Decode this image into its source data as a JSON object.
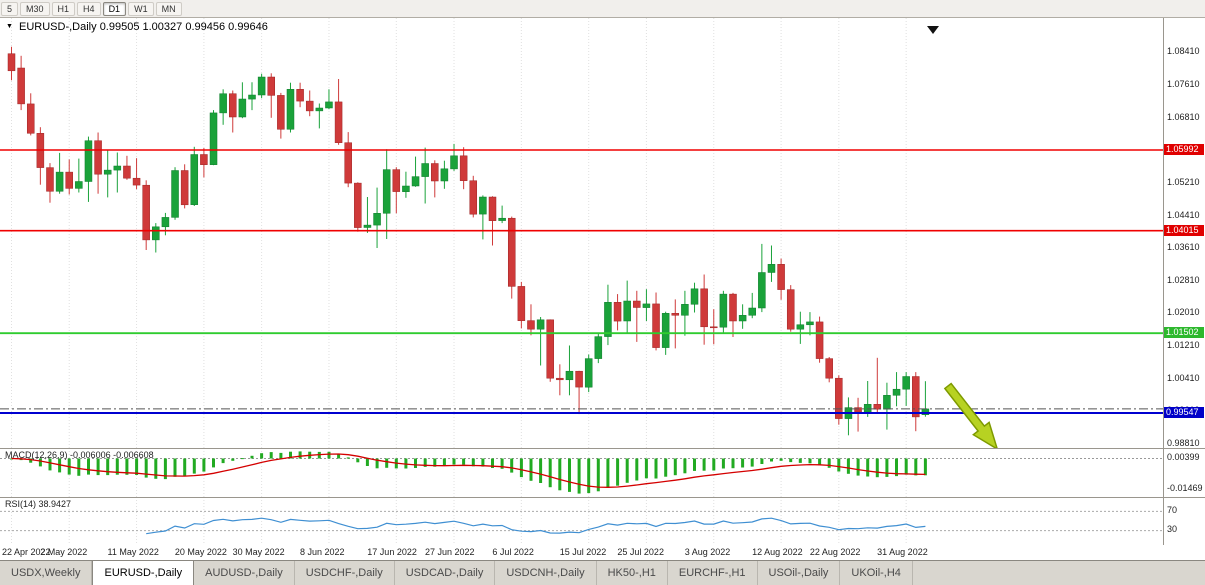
{
  "toolbar": {
    "buttons": [
      {
        "label": "5",
        "active": false
      },
      {
        "label": "M30",
        "active": false
      },
      {
        "label": "H1",
        "active": false
      },
      {
        "label": "H4",
        "active": false
      },
      {
        "label": "D1",
        "active": true
      },
      {
        "label": "W1",
        "active": false
      },
      {
        "label": "MN",
        "active": false
      }
    ]
  },
  "header": {
    "symbol_label": "EURUSD-,Daily",
    "ohlc_label": "0.99505 1.00327 0.99456 0.99646"
  },
  "indicators": {
    "macd": {
      "label": "MACD(12,26,9)",
      "values_label": "-0.006006 -0.006608",
      "axis_max_label": "0.00399",
      "axis_min_label": "-0.01469"
    },
    "rsi": {
      "label": "RSI(14)",
      "value_label": "38.9427",
      "levels": [
        70,
        30
      ],
      "level_labels": [
        "70",
        "30"
      ]
    }
  },
  "price_axis": {
    "labels": [
      {
        "text": "1.08410",
        "value": 1.0841
      },
      {
        "text": "1.07610",
        "value": 1.0761
      },
      {
        "text": "1.06810",
        "value": 1.0681
      },
      {
        "text": "1.06010",
        "value": 1.0601
      },
      {
        "text": "1.05210",
        "value": 1.0521
      },
      {
        "text": "1.04410",
        "value": 1.0441
      },
      {
        "text": "1.03610",
        "value": 1.0361
      },
      {
        "text": "1.02810",
        "value": 1.0281
      },
      {
        "text": "1.02010",
        "value": 1.0201
      },
      {
        "text": "1.01210",
        "value": 1.0121
      },
      {
        "text": "1.00410",
        "value": 1.0041
      },
      {
        "text": "0.99610",
        "value": 0.9961
      },
      {
        "text": "0.98810",
        "value": 0.9881
      }
    ],
    "badges": [
      {
        "text": "1.05992",
        "value": 1.05992,
        "color": "#e00000"
      },
      {
        "text": "1.04015",
        "value": 1.04015,
        "color": "#e00000"
      },
      {
        "text": "1.01502",
        "value": 1.01502,
        "color": "#2db82d"
      },
      {
        "text": "0.99547",
        "value": 0.99547,
        "color": "#0000c8"
      }
    ]
  },
  "hlines": [
    {
      "value": 1.05992,
      "color": "#f00000",
      "width": 1.6,
      "style": "solid",
      "name": "resistance-upper"
    },
    {
      "value": 1.04015,
      "color": "#f00000",
      "width": 1.6,
      "style": "solid",
      "name": "resistance-lower"
    },
    {
      "value": 1.01502,
      "color": "#2ecc2e",
      "width": 1.8,
      "style": "solid",
      "name": "mid-level"
    },
    {
      "value": 0.99547,
      "color": "#0000d0",
      "width": 2,
      "style": "solid",
      "name": "support"
    },
    {
      "value": 0.99646,
      "color": "#555555",
      "width": 1,
      "style": "dashdot",
      "name": "last-price"
    }
  ],
  "annotation": {
    "type": "arrow-down-right",
    "color": "#b7d222",
    "outline": "#7e9a00"
  },
  "colors": {
    "bull": "#1aa23a",
    "bull_edge": "#0d7c2b",
    "bear": "#cf3a3a",
    "bear_edge": "#9e2424",
    "macd_hist": "#22aa22",
    "macd_signal": "#d40000",
    "rsi_line": "#3f8fd2",
    "grid": "#e0e0e0"
  },
  "chart_data": {
    "type": "candlestick",
    "symbol": "EURUSD-",
    "timeframe": "Daily",
    "title": "EURUSD-,Daily",
    "last_ohlc": {
      "open": 0.99505,
      "high": 1.00327,
      "low": 0.99456,
      "close": 0.99646
    },
    "ylim": [
      0.98689,
      1.09226
    ],
    "x_tick_labels": [
      {
        "i": 0,
        "label": "22 Apr 2022"
      },
      {
        "i": 6,
        "label": "2 May 2022"
      },
      {
        "i": 13,
        "label": "11 May 2022"
      },
      {
        "i": 20,
        "label": "20 May 2022"
      },
      {
        "i": 26,
        "label": "30 May 2022"
      },
      {
        "i": 33,
        "label": "8 Jun 2022"
      },
      {
        "i": 40,
        "label": "17 Jun 2022"
      },
      {
        "i": 46,
        "label": "27 Jun 2022"
      },
      {
        "i": 53,
        "label": "6 Jul 2022"
      },
      {
        "i": 60,
        "label": "15 Jul 2022"
      },
      {
        "i": 66,
        "label": "25 Jul 2022"
      },
      {
        "i": 73,
        "label": "3 Aug 2022"
      },
      {
        "i": 80,
        "label": "12 Aug 2022"
      },
      {
        "i": 86,
        "label": "22 Aug 2022"
      },
      {
        "i": 93,
        "label": "31 Aug 2022"
      }
    ],
    "bars": [
      [
        1.0835,
        1.0852,
        1.077,
        1.0793
      ],
      [
        1.08,
        1.083,
        1.0697,
        1.0712
      ],
      [
        1.0712,
        1.0738,
        1.0635,
        1.064
      ],
      [
        1.064,
        1.0655,
        1.0514,
        1.0556
      ],
      [
        1.0556,
        1.0567,
        1.047,
        1.0498
      ],
      [
        1.0498,
        1.0592,
        1.0492,
        1.0545
      ],
      [
        1.0545,
        1.0576,
        1.049,
        1.0505
      ],
      [
        1.0505,
        1.0578,
        1.0495,
        1.0522
      ],
      [
        1.0522,
        1.0632,
        1.0472,
        1.0622
      ],
      [
        1.0622,
        1.0642,
        1.0492,
        1.054
      ],
      [
        1.054,
        1.0599,
        1.0483,
        1.055
      ],
      [
        1.055,
        1.0593,
        1.0495,
        1.056
      ],
      [
        1.056,
        1.0585,
        1.0526,
        1.053
      ],
      [
        1.053,
        1.0579,
        1.0503,
        1.0513
      ],
      [
        1.0513,
        1.0525,
        1.0354,
        1.0379
      ],
      [
        1.0379,
        1.042,
        1.0348,
        1.0411
      ],
      [
        1.0411,
        1.0445,
        1.039,
        1.0434
      ],
      [
        1.0434,
        1.0557,
        1.0428,
        1.0549
      ],
      [
        1.0549,
        1.0564,
        1.0456,
        1.0465
      ],
      [
        1.0465,
        1.0607,
        1.0462,
        1.0588
      ],
      [
        1.0588,
        1.0604,
        1.0532,
        1.0563
      ],
      [
        1.0563,
        1.0697,
        1.0562,
        1.069
      ],
      [
        1.069,
        1.0748,
        1.0661,
        1.0737
      ],
      [
        1.0737,
        1.0745,
        1.0642,
        1.068
      ],
      [
        1.068,
        1.0765,
        1.0677,
        1.0724
      ],
      [
        1.0724,
        1.0765,
        1.0697,
        1.0734
      ],
      [
        1.0734,
        1.0786,
        1.0726,
        1.0778
      ],
      [
        1.0778,
        1.0787,
        1.0678,
        1.0733
      ],
      [
        1.0733,
        1.0739,
        1.0627,
        1.065
      ],
      [
        1.065,
        1.0764,
        1.0642,
        1.0748
      ],
      [
        1.0748,
        1.0764,
        1.0704,
        1.0719
      ],
      [
        1.0719,
        1.0745,
        1.0682,
        1.0695
      ],
      [
        1.0695,
        1.0713,
        1.0652,
        1.0702
      ],
      [
        1.0702,
        1.0748,
        1.0699,
        1.0717
      ],
      [
        1.0717,
        1.0773,
        1.0612,
        1.0617
      ],
      [
        1.0617,
        1.0643,
        1.0508,
        1.0518
      ],
      [
        1.0518,
        1.052,
        1.0399,
        1.0409
      ],
      [
        1.0409,
        1.0484,
        1.0396,
        1.0415
      ],
      [
        1.0415,
        1.0507,
        1.0359,
        1.0444
      ],
      [
        1.0444,
        1.0601,
        1.0381,
        1.0551
      ],
      [
        1.0551,
        1.0557,
        1.0444,
        1.0497
      ],
      [
        1.0497,
        1.0546,
        1.0482,
        1.0511
      ],
      [
        1.0511,
        1.0583,
        1.0509,
        1.0534
      ],
      [
        1.0534,
        1.0605,
        1.0468,
        1.0566
      ],
      [
        1.0566,
        1.0574,
        1.0483,
        1.0523
      ],
      [
        1.0523,
        1.0573,
        1.0504,
        1.0553
      ],
      [
        1.0553,
        1.0614,
        1.0548,
        1.0585
      ],
      [
        1.0585,
        1.0606,
        1.0503,
        1.0524
      ],
      [
        1.0524,
        1.0536,
        1.0434,
        1.0442
      ],
      [
        1.0442,
        1.0488,
        1.038,
        1.0484
      ],
      [
        1.0484,
        1.0486,
        1.0365,
        1.0426
      ],
      [
        1.0426,
        1.0463,
        1.042,
        1.0432
      ],
      [
        1.0432,
        1.0436,
        1.0235,
        1.0265
      ],
      [
        1.0265,
        1.0276,
        1.0162,
        1.0181
      ],
      [
        1.0181,
        1.0221,
        1.0145,
        1.016
      ],
      [
        1.016,
        1.019,
        1.0071,
        1.0183
      ],
      [
        1.0183,
        1.0184,
        1.0031,
        1.004
      ],
      [
        1.004,
        1.0074,
        0.9998,
        1.0036
      ],
      [
        1.0036,
        1.012,
        0.9998,
        1.0057
      ],
      [
        1.0057,
        1.0058,
        0.9952,
        1.0018
      ],
      [
        1.0018,
        1.0098,
        1.0006,
        1.0088
      ],
      [
        1.0088,
        1.0149,
        1.0077,
        1.0142
      ],
      [
        1.0142,
        1.0269,
        1.0121,
        1.0226
      ],
      [
        1.0226,
        1.0246,
        1.0157,
        1.018
      ],
      [
        1.018,
        1.0279,
        1.0151,
        1.0229
      ],
      [
        1.0229,
        1.0254,
        1.0129,
        1.0213
      ],
      [
        1.0213,
        1.0258,
        1.018,
        1.0222
      ],
      [
        1.0222,
        1.025,
        1.0108,
        1.0115
      ],
      [
        1.0115,
        1.0203,
        1.0097,
        1.0199
      ],
      [
        1.0199,
        1.0233,
        1.0113,
        1.0194
      ],
      [
        1.0194,
        1.0254,
        1.0144,
        1.0221
      ],
      [
        1.0221,
        1.0274,
        1.0201,
        1.0259
      ],
      [
        1.0259,
        1.0294,
        1.0122,
        1.0166
      ],
      [
        1.0166,
        1.0209,
        1.0123,
        1.0165
      ],
      [
        1.0165,
        1.0254,
        1.0152,
        1.0246
      ],
      [
        1.0246,
        1.0249,
        1.0141,
        1.018
      ],
      [
        1.018,
        1.0221,
        1.0161,
        1.0194
      ],
      [
        1.0194,
        1.0249,
        1.0187,
        1.0212
      ],
      [
        1.0212,
        1.0369,
        1.0202,
        1.0299
      ],
      [
        1.0299,
        1.0365,
        1.0276,
        1.0319
      ],
      [
        1.0319,
        1.0333,
        1.0232,
        1.0257
      ],
      [
        1.0257,
        1.0268,
        1.0154,
        1.016
      ],
      [
        1.016,
        1.0203,
        1.0124,
        1.0171
      ],
      [
        1.0171,
        1.0202,
        1.0145,
        1.0178
      ],
      [
        1.0178,
        1.0191,
        1.0078,
        1.0088
      ],
      [
        1.0088,
        1.0092,
        1.003,
        1.004
      ],
      [
        1.004,
        1.0047,
        0.9926,
        0.9941
      ],
      [
        0.9941,
        0.9993,
        0.99,
        0.9968
      ],
      [
        0.9968,
        0.9992,
        0.9909,
        0.9957
      ],
      [
        0.9957,
        1.0033,
        0.9945,
        0.9976
      ],
      [
        0.9976,
        1.009,
        0.9953,
        0.9964
      ],
      [
        0.9964,
        1.0029,
        0.9914,
        0.9998
      ],
      [
        0.9998,
        1.0055,
        0.9971,
        1.0013
      ],
      [
        1.0013,
        1.0055,
        0.9972,
        1.0044
      ],
      [
        1.0044,
        1.0055,
        0.991,
        0.9945
      ],
      [
        0.99505,
        1.00327,
        0.99456,
        0.99646
      ]
    ]
  },
  "tabs": [
    {
      "label": "USDX,Weekly",
      "active": false
    },
    {
      "label": "EURUSD-,Daily",
      "active": true
    },
    {
      "label": "AUDUSD-,Daily",
      "active": false
    },
    {
      "label": "USDCHF-,Daily",
      "active": false
    },
    {
      "label": "USDCAD-,Daily",
      "active": false
    },
    {
      "label": "USDCNH-,Daily",
      "active": false
    },
    {
      "label": "HK50-,H1",
      "active": false
    },
    {
      "label": "EURCHF-,H1",
      "active": false
    },
    {
      "label": "USOil-,Daily",
      "active": false
    },
    {
      "label": "UKOil-,H4",
      "active": false
    }
  ]
}
